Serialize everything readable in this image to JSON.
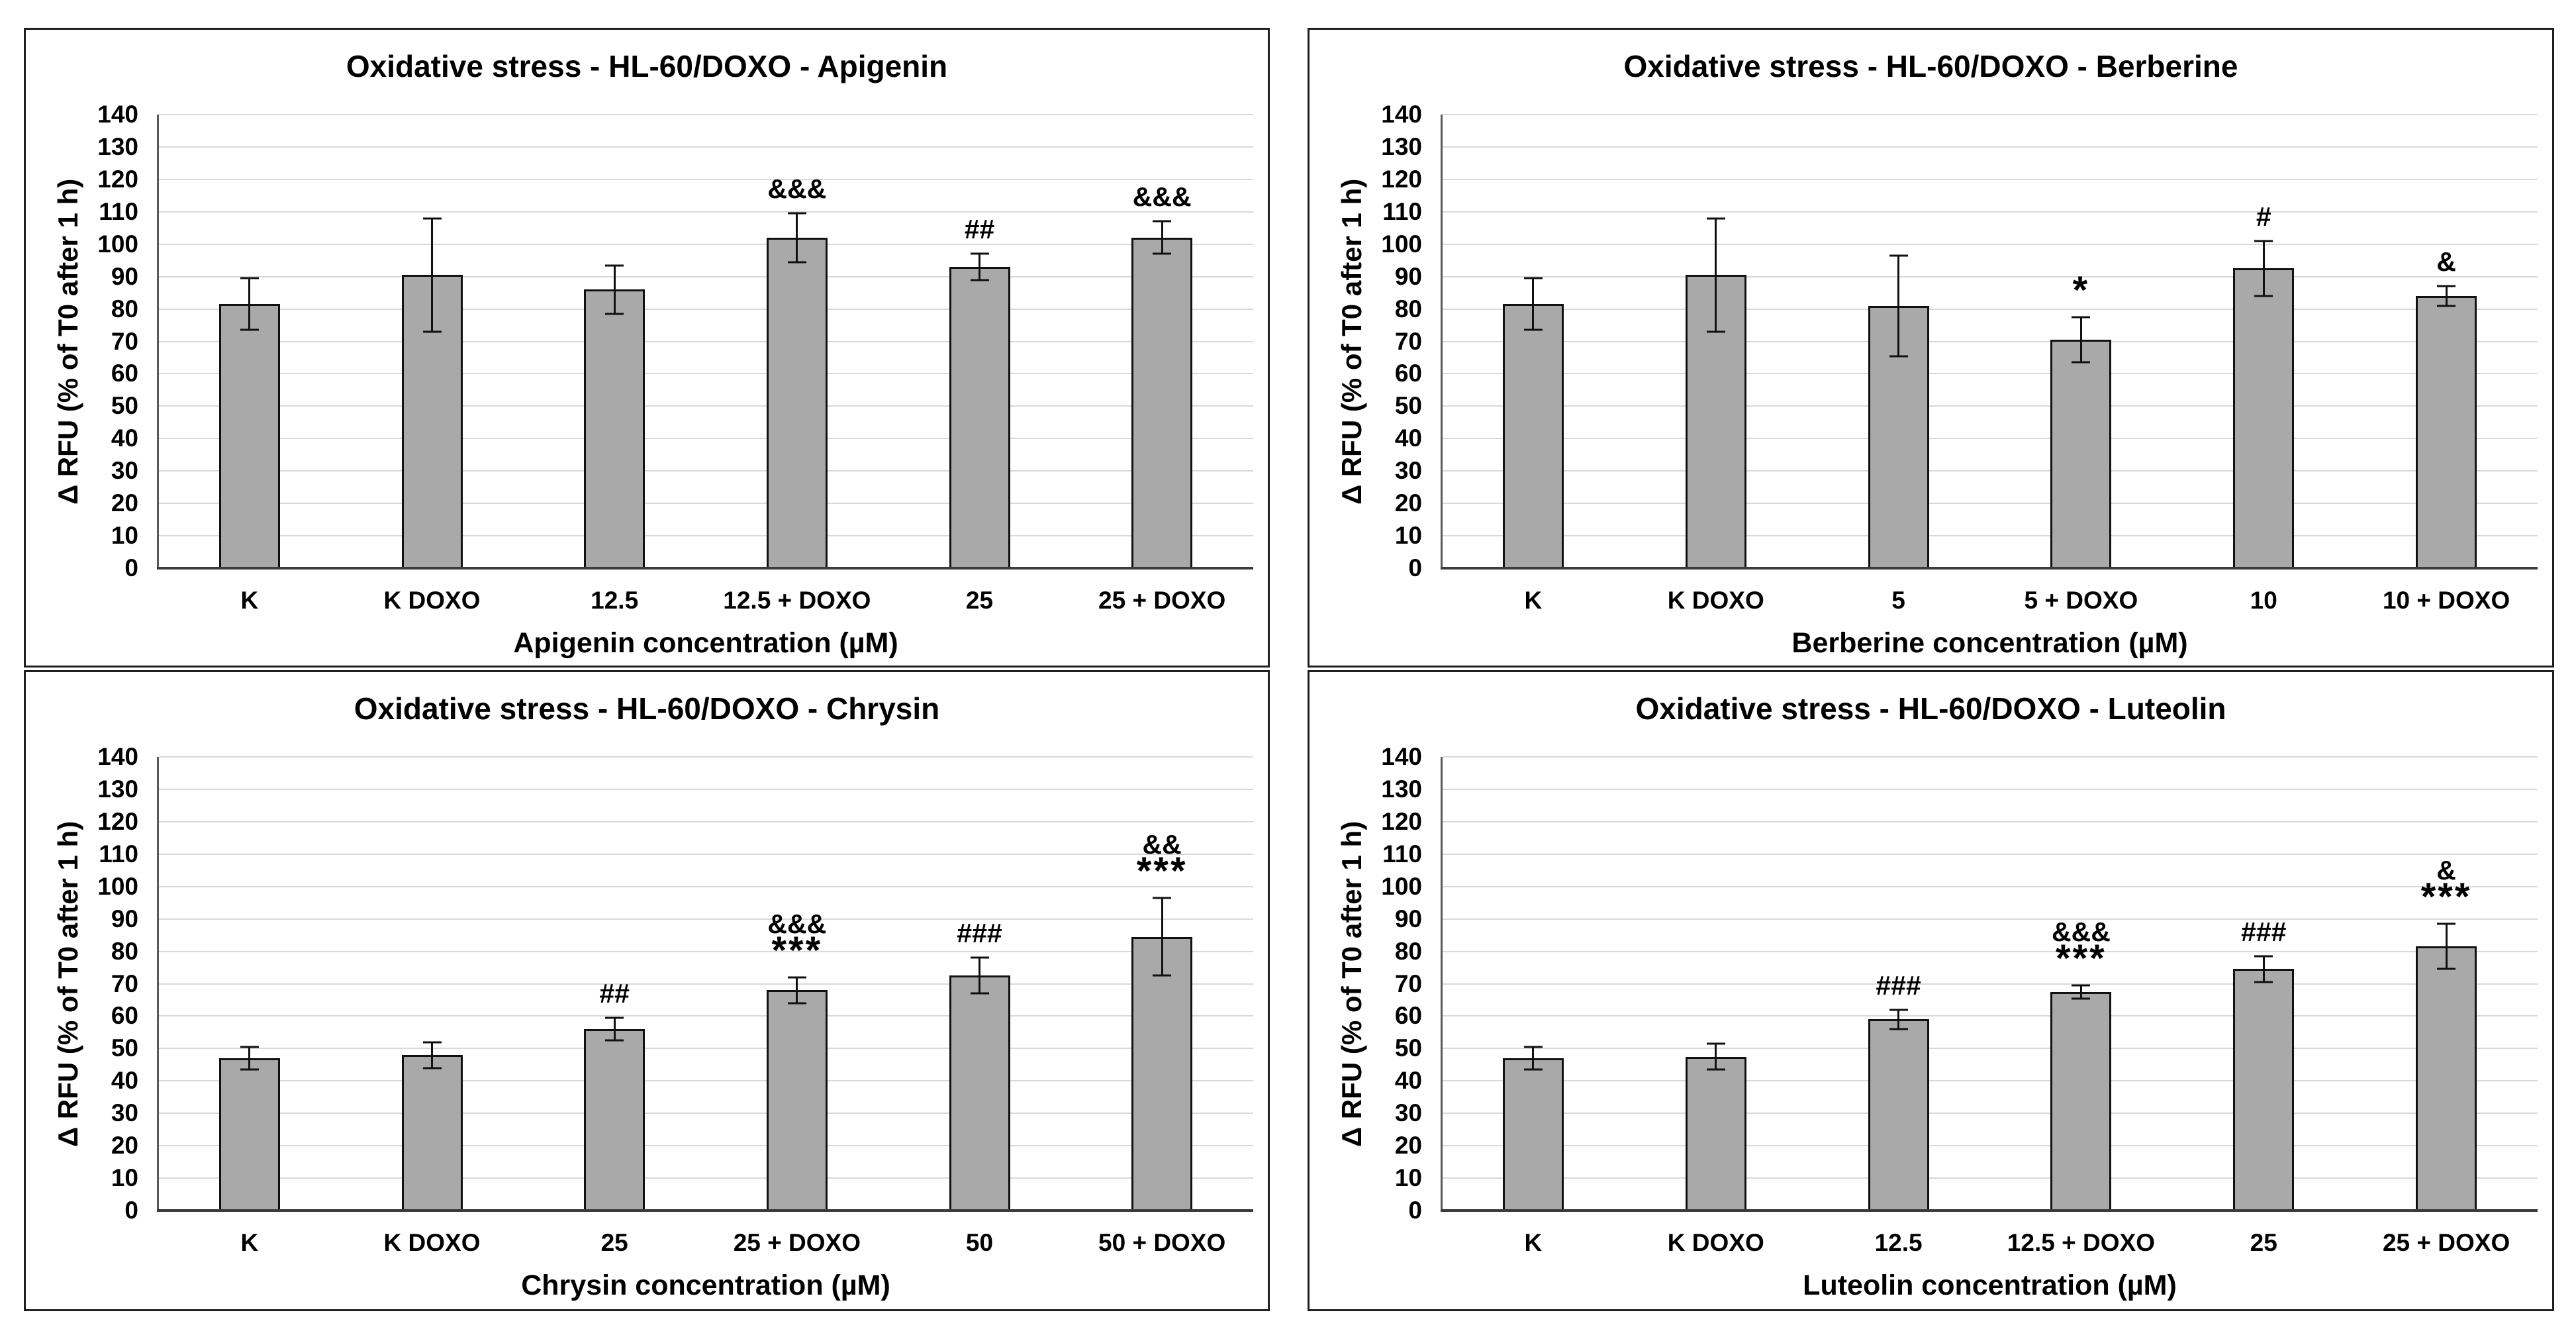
{
  "figure": {
    "background": "#ffffff",
    "panel_border_color": "#1f1f1f",
    "bar_fill_color": "#a9a9a9",
    "bar_border_color": "#111111",
    "gridline_color": "#d9d9d9",
    "axis_line_color": "#595959",
    "text_color": "#000000"
  },
  "chart_data": [
    {
      "type": "bar",
      "title": "Oxidative stress - HL-60/DOXO - Apigenin",
      "xlabel": "Apigenin concentration (µM)",
      "ylabel": "Δ RFU (% of  T0 after 1 h)",
      "ylim": [
        0,
        140
      ],
      "ytick_step": 10,
      "grid": true,
      "legend": "none",
      "categories": [
        "K",
        "K DOXO",
        "12.5",
        "12.5 + DOXO",
        "25",
        "25 + DOXO"
      ],
      "values": [
        81.5,
        90.5,
        86,
        102,
        93,
        102
      ],
      "errors": [
        8,
        17.5,
        7.5,
        7.5,
        4,
        5
      ],
      "annotations": [
        [],
        [],
        [],
        [
          "&&&"
        ],
        [
          "##"
        ],
        [
          "&&&"
        ]
      ]
    },
    {
      "type": "bar",
      "title": "Oxidative stress - HL-60/DOXO - Berberine",
      "xlabel": "Berberine concentration (µM)",
      "ylabel": "Δ RFU (% of  T0 after 1 h)",
      "ylim": [
        0,
        140
      ],
      "ytick_step": 10,
      "grid": true,
      "legend": "none",
      "categories": [
        "K",
        "K DOXO",
        "5",
        "5 + DOXO",
        "10",
        "10 + DOXO"
      ],
      "values": [
        81.5,
        90.5,
        81,
        70.5,
        92.5,
        84
      ],
      "errors": [
        8,
        17.5,
        15.5,
        7,
        8.5,
        3
      ],
      "annotations": [
        [],
        [],
        [],
        [
          "*"
        ],
        [
          "#"
        ],
        [
          "&"
        ]
      ]
    },
    {
      "type": "bar",
      "title": "Oxidative stress - HL-60/DOXO - Chrysin",
      "xlabel": "Chrysin concentration (µM)",
      "ylabel": "Δ RFU (% of  T0 after 1 h)",
      "ylim": [
        0,
        140
      ],
      "ytick_step": 10,
      "grid": true,
      "legend": "none",
      "categories": [
        "K",
        "K DOXO",
        "25",
        "25 + DOXO",
        "50",
        "50 + DOXO"
      ],
      "values": [
        47,
        48,
        56,
        68,
        72.5,
        84.5
      ],
      "errors": [
        3.5,
        4,
        3.5,
        4,
        5.5,
        12
      ],
      "annotations": [
        [],
        [],
        [
          "##"
        ],
        [
          "&&&",
          "***"
        ],
        [
          "###"
        ],
        [
          "&&",
          "***"
        ]
      ]
    },
    {
      "type": "bar",
      "title": "Oxidative stress - HL-60/DOXO - Luteolin",
      "xlabel": "Luteolin concentration (µM)",
      "ylabel": "Δ RFU (% of  T0 after 1 h)",
      "ylim": [
        0,
        140
      ],
      "ytick_step": 10,
      "grid": true,
      "legend": "none",
      "categories": [
        "K",
        "K DOXO",
        "12.5",
        "12.5 + DOXO",
        "25",
        "25 + DOXO"
      ],
      "values": [
        47,
        47.5,
        59,
        67.5,
        74.5,
        81.5
      ],
      "errors": [
        3.5,
        4,
        3,
        2,
        4,
        7
      ],
      "annotations": [
        [],
        [],
        [
          "###"
        ],
        [
          "&&&",
          "***"
        ],
        [
          "###"
        ],
        [
          "&",
          "***"
        ]
      ]
    }
  ]
}
